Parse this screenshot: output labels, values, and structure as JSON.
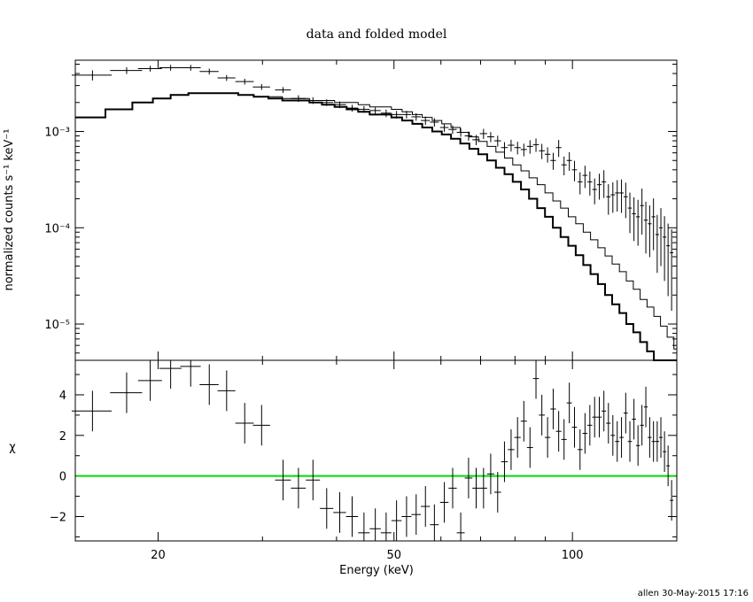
{
  "chart_data": [
    {
      "type": "line",
      "panel": "top",
      "title": "data and folded model",
      "ylabel": "normalized counts s⁻¹ keV⁻¹",
      "xscale": "log",
      "yscale": "log",
      "xlim": [
        14.5,
        150
      ],
      "ylim": [
        4.2e-06,
        0.0055
      ],
      "ytick_labels": [
        "10⁻³",
        "10⁻⁴",
        "10⁻⁵"
      ],
      "ytick_values": [
        0.001,
        0.0001,
        1e-05
      ],
      "grid": false,
      "data_points": {
        "name": "data",
        "x": [
          15.5,
          17.7,
          19.4,
          21.0,
          22.7,
          24.4,
          26.1,
          28.0,
          29.9,
          32.5,
          34.5,
          36.5,
          38.5,
          40.5,
          42.5,
          44.5,
          46.5,
          48.5,
          50.5,
          52.5,
          54.5,
          56.5,
          58.5,
          60.8,
          62.8,
          64.8,
          66.8,
          68.8,
          70.8,
          72.8,
          74.8,
          76.8,
          78.8,
          80.8,
          82.8,
          84.8,
          86.8,
          88.8,
          90.8,
          92.8,
          94.8,
          96.8,
          98.8,
          100.8,
          103,
          105,
          107,
          109,
          111,
          113,
          115,
          117,
          119,
          121,
          123,
          125,
          127,
          129,
          131,
          133,
          135,
          137,
          139,
          141,
          143,
          145,
          147
        ],
        "y": [
          0.00385,
          0.0043,
          0.0045,
          0.0046,
          0.0046,
          0.0042,
          0.0036,
          0.0033,
          0.0029,
          0.0027,
          0.0022,
          0.0021,
          0.002,
          0.0019,
          0.00175,
          0.0017,
          0.00165,
          0.00155,
          0.0015,
          0.0015,
          0.00142,
          0.0013,
          0.00125,
          0.0011,
          0.00105,
          0.00098,
          0.0009,
          0.00082,
          0.00095,
          0.00088,
          0.0008,
          0.00068,
          0.00072,
          0.00068,
          0.00065,
          0.0007,
          0.00073,
          0.00063,
          0.00058,
          0.0005,
          0.00068,
          0.00045,
          0.0005,
          0.0004,
          0.0003,
          0.00035,
          0.0003,
          0.00025,
          0.00028,
          0.0003,
          0.00021,
          0.00022,
          0.00023,
          0.00023,
          0.00021,
          0.00016,
          0.00014,
          0.00013,
          0.00017,
          0.00012,
          0.00011,
          0.00013,
          8.5e-05,
          0.0001,
          8e-05,
          6.5e-05,
          5.5e-05
        ],
        "xerr": [
          1.2,
          1.1,
          0.9,
          0.9,
          0.9,
          0.9,
          0.9,
          1.0,
          1.0,
          1.0,
          1.0,
          1.0,
          1.0,
          1.0,
          1.0,
          1.0,
          1.0,
          1.0,
          1.0,
          1.0,
          1.0,
          1.0,
          1.0,
          1.0,
          1.0,
          1.0,
          1.0,
          1.0,
          1.0,
          1.0,
          1.0,
          1.0,
          1.0,
          1.0,
          1.0,
          1.0,
          1.0,
          1.0,
          1.0,
          1.0,
          1.0,
          1.0,
          1.0,
          1.0,
          1.0,
          1.0,
          1.0,
          1.0,
          1.0,
          1.0,
          1.0,
          1.0,
          1.0,
          1.0,
          1.0,
          1.0,
          1.0,
          1.0,
          1.0,
          1.0,
          1.0,
          1.0,
          1.0,
          1.0,
          1.0,
          1.0,
          1.0
        ],
        "yerr_rel": [
          0.12,
          0.08,
          0.07,
          0.07,
          0.07,
          0.07,
          0.07,
          0.07,
          0.07,
          0.07,
          0.08,
          0.08,
          0.08,
          0.08,
          0.08,
          0.08,
          0.08,
          0.09,
          0.09,
          0.09,
          0.09,
          0.1,
          0.1,
          0.1,
          0.1,
          0.1,
          0.11,
          0.12,
          0.12,
          0.12,
          0.13,
          0.14,
          0.14,
          0.15,
          0.15,
          0.16,
          0.16,
          0.18,
          0.18,
          0.2,
          0.2,
          0.22,
          0.22,
          0.24,
          0.26,
          0.26,
          0.28,
          0.3,
          0.3,
          0.32,
          0.35,
          0.35,
          0.36,
          0.38,
          0.4,
          0.45,
          0.48,
          0.5,
          0.5,
          0.55,
          0.55,
          0.55,
          0.6,
          0.6,
          0.65,
          0.7,
          0.75
        ]
      },
      "models": [
        {
          "style": "thin",
          "edges": [
            14.5,
            16.3,
            18.1,
            19.6,
            21.0,
            22.5,
            24.1,
            25.7,
            27.3,
            29.0,
            30.7,
            32.4,
            34.2,
            36.0,
            37.8,
            39.7,
            41.6,
            43.5,
            45.5,
            47.5,
            49.5,
            51.6,
            53.7,
            55.8,
            58.0,
            60.2,
            62.4,
            64.7,
            67.0,
            69.4,
            71.8,
            74.3,
            76.8,
            79.3,
            81.9,
            84.5,
            87.2,
            89.9,
            92.7,
            95.5,
            98.4,
            101.3,
            104.3,
            107.3,
            110.4,
            113.5,
            116.7,
            120.0,
            123.3,
            126.7,
            130.1,
            133.6,
            137.2,
            140.8,
            144.5,
            148.3,
            150
          ],
          "values": [
            0.0014,
            0.0017,
            0.002,
            0.0022,
            0.0024,
            0.0025,
            0.0025,
            0.0025,
            0.0024,
            0.0023,
            0.0023,
            0.0022,
            0.0022,
            0.0021,
            0.0021,
            0.002,
            0.002,
            0.0019,
            0.0018,
            0.0018,
            0.0017,
            0.0016,
            0.0015,
            0.0014,
            0.0013,
            0.0012,
            0.0011,
            0.00098,
            0.00088,
            0.00079,
            0.0007,
            0.00061,
            0.00053,
            0.00045,
            0.00039,
            0.00033,
            0.00028,
            0.00023,
            0.00019,
            0.00016,
            0.00013,
            0.00011,
            9e-05,
            7.5e-05,
            6.2e-05,
            5.1e-05,
            4.2e-05,
            3.5e-05,
            2.8e-05,
            2.3e-05,
            1.8e-05,
            1.5e-05,
            1.2e-05,
            9.5e-06,
            7.3e-06,
            5.5e-06
          ]
        },
        {
          "style": "thick",
          "edges": [
            14.5,
            16.3,
            18.1,
            19.6,
            21.0,
            22.5,
            24.1,
            25.7,
            27.3,
            29.0,
            30.7,
            32.4,
            34.2,
            36.0,
            37.8,
            39.7,
            41.6,
            43.5,
            45.5,
            47.5,
            49.5,
            51.6,
            53.7,
            55.8,
            58.0,
            60.2,
            62.4,
            64.7,
            67.0,
            69.4,
            71.8,
            74.3,
            76.8,
            79.3,
            81.9,
            84.5,
            87.2,
            89.9,
            92.7,
            95.5,
            98.4,
            101.3,
            104.3,
            107.3,
            110.4,
            113.5,
            116.7,
            120.0,
            123.3,
            126.7,
            130.1,
            133.6,
            137.2,
            140.8,
            144.5,
            148.3,
            150
          ],
          "values": [
            0.0014,
            0.0017,
            0.002,
            0.0022,
            0.0024,
            0.0025,
            0.0025,
            0.0025,
            0.0024,
            0.0023,
            0.0022,
            0.0021,
            0.0021,
            0.002,
            0.0019,
            0.0018,
            0.0017,
            0.0016,
            0.0015,
            0.0015,
            0.0014,
            0.0013,
            0.0012,
            0.0011,
            0.001,
            0.00093,
            0.00084,
            0.00075,
            0.00066,
            0.00058,
            0.0005,
            0.00042,
            0.00036,
            0.0003,
            0.00025,
            0.0002,
            0.00016,
            0.00013,
            0.0001,
            8e-05,
            6.5e-05,
            5.2e-05,
            4.1e-05,
            3.3e-05,
            2.6e-05,
            2e-05,
            1.6e-05,
            1.3e-05,
            1e-05,
            8.2e-06,
            6.5e-06,
            5.2e-06,
            4.2e-06,
            3.4e-06,
            2.7e-06,
            2.2e-06
          ]
        }
      ]
    },
    {
      "type": "scatter",
      "panel": "bottom",
      "xlabel": "Energy (keV)",
      "ylabel": "χ",
      "xscale": "log",
      "xlim": [
        14.5,
        150
      ],
      "ylim": [
        -3.2,
        5.7
      ],
      "xtick_labels": [
        "20",
        "50",
        "100"
      ],
      "xtick_values": [
        20,
        50,
        100
      ],
      "ytick_labels": [
        "4",
        "2",
        "0",
        "−2"
      ],
      "ytick_values": [
        4,
        2,
        0,
        -2
      ],
      "zero_line_color": "#00dd00",
      "residuals": {
        "x": [
          15.5,
          17.7,
          19.4,
          21.0,
          22.7,
          24.4,
          26.1,
          28.0,
          29.9,
          32.5,
          34.5,
          36.5,
          38.5,
          40.5,
          42.5,
          44.5,
          46.5,
          48.5,
          50.5,
          52.5,
          54.5,
          56.5,
          58.5,
          60.8,
          62.8,
          64.8,
          66.8,
          68.8,
          70.8,
          72.8,
          74.8,
          76.8,
          78.8,
          80.8,
          82.8,
          84.8,
          86.8,
          88.8,
          90.8,
          92.8,
          94.8,
          96.8,
          98.8,
          100.8,
          103,
          105,
          107,
          109,
          111,
          113,
          115,
          117,
          119,
          121,
          123,
          125,
          127,
          129,
          131,
          133,
          135,
          137,
          139,
          141,
          143,
          145,
          147
        ],
        "y": [
          3.2,
          4.1,
          4.7,
          5.3,
          5.4,
          4.5,
          4.2,
          2.6,
          2.5,
          -0.2,
          -0.6,
          -0.2,
          -1.6,
          -1.8,
          -2.0,
          -2.8,
          -2.6,
          -2.8,
          -2.2,
          -2.0,
          -1.9,
          -1.5,
          -2.4,
          -1.3,
          -0.6,
          -2.8,
          -0.1,
          -0.6,
          -0.6,
          0.1,
          -0.8,
          0.7,
          1.3,
          1.9,
          2.7,
          1.4,
          4.8,
          3.0,
          1.9,
          3.3,
          2.2,
          1.8,
          3.6,
          2.4,
          1.3,
          2.1,
          2.5,
          2.9,
          2.9,
          3.2,
          2.6,
          2.0,
          1.7,
          1.9,
          3.1,
          1.7,
          2.8,
          1.5,
          2.5,
          3.4,
          1.9,
          1.7,
          1.7,
          1.9,
          1.2,
          0.5,
          -1.2
        ],
        "xerr": [
          1.2,
          1.1,
          0.9,
          0.9,
          0.9,
          0.9,
          0.9,
          1.0,
          1.0,
          1.0,
          1.0,
          1.0,
          1.0,
          1.0,
          1.0,
          1.0,
          1.0,
          1.0,
          1.0,
          1.0,
          1.0,
          1.0,
          1.0,
          1.0,
          1.0,
          1.0,
          1.0,
          1.0,
          1.0,
          1.0,
          1.0,
          1.0,
          1.0,
          1.0,
          1.0,
          1.0,
          1.0,
          1.0,
          1.0,
          1.0,
          1.0,
          1.0,
          1.0,
          1.0,
          1.0,
          1.0,
          1.0,
          1.0,
          1.0,
          1.0,
          1.0,
          1.0,
          1.0,
          1.0,
          1.0,
          1.0,
          1.0,
          1.0,
          1.0,
          1.0,
          1.0,
          1.0,
          1.0,
          1.0,
          1.0,
          1.0,
          1.0
        ],
        "yerr": [
          1.0,
          1.0,
          1.0,
          1.0,
          1.0,
          1.0,
          1.0,
          1.0,
          1.0,
          1.0,
          1.0,
          1.0,
          1.0,
          1.0,
          1.0,
          1.0,
          1.0,
          1.0,
          1.0,
          1.0,
          1.0,
          1.0,
          1.0,
          1.0,
          1.0,
          1.0,
          1.0,
          1.0,
          1.0,
          1.0,
          1.0,
          1.0,
          1.0,
          1.0,
          1.0,
          1.0,
          1.0,
          1.0,
          1.0,
          1.0,
          1.0,
          1.0,
          1.0,
          1.0,
          1.0,
          1.0,
          1.0,
          1.0,
          1.0,
          1.0,
          1.0,
          1.0,
          1.0,
          1.0,
          1.0,
          1.0,
          1.0,
          1.0,
          1.0,
          1.0,
          1.0,
          1.0,
          1.0,
          1.0,
          1.0,
          1.0,
          1.0
        ]
      }
    }
  ],
  "footer": {
    "stamp": "allen 30-May-2015 17:16"
  }
}
